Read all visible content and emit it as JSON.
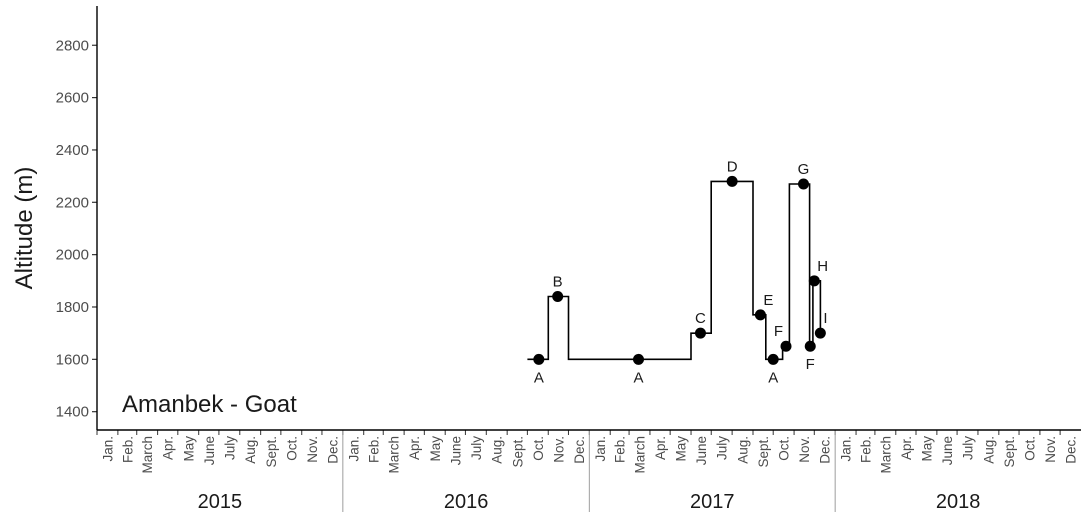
{
  "chart_data": {
    "type": "line",
    "ylabel": "Altitude (m)",
    "annotation": "Amanbek - Goat",
    "ylim": [
      1330,
      2950
    ],
    "yticks": [
      1400,
      1600,
      1800,
      2000,
      2200,
      2400,
      2600,
      2800
    ],
    "x_range": [
      "2015-01-01",
      "2019-01-01"
    ],
    "months": [
      "Jan.",
      "Feb.",
      "March",
      "Apr.",
      "May",
      "June",
      "July",
      "Aug.",
      "Sept.",
      "Oct.",
      "Nov.",
      "Dec."
    ],
    "years": [
      "2015",
      "2016",
      "2017",
      "2018"
    ],
    "step_line": [
      {
        "date": "2016-10-01",
        "y": 1600
      },
      {
        "date": "2016-11-01",
        "y": 1840
      },
      {
        "date": "2016-12-01",
        "y": 1600
      },
      {
        "date": "2017-06-01",
        "y": 1700
      },
      {
        "date": "2017-07-01",
        "y": 2280
      },
      {
        "date": "2017-09-01",
        "y": 1770
      },
      {
        "date": "2017-09-20",
        "y": 1600
      },
      {
        "date": "2017-10-15",
        "y": 1650
      },
      {
        "date": "2017-10-25",
        "y": 2270
      },
      {
        "date": "2017-11-24",
        "y": 1650
      },
      {
        "date": "2017-11-29",
        "y": 1900
      },
      {
        "date": "2017-12-10",
        "y": 1700
      }
    ],
    "points": [
      {
        "label": "A",
        "date": "2016-10-18",
        "y": 1600,
        "label_pos": "below"
      },
      {
        "label": "B",
        "date": "2016-11-15",
        "y": 1840,
        "label_pos": "above"
      },
      {
        "label": "A",
        "date": "2017-03-15",
        "y": 1600,
        "label_pos": "below"
      },
      {
        "label": "C",
        "date": "2017-06-15",
        "y": 1700,
        "label_pos": "above"
      },
      {
        "label": "D",
        "date": "2017-08-01",
        "y": 2280,
        "label_pos": "above"
      },
      {
        "label": "E",
        "date": "2017-09-12",
        "y": 1770,
        "label_pos": "above-right"
      },
      {
        "label": "A",
        "date": "2017-10-01",
        "y": 1600,
        "label_pos": "below"
      },
      {
        "label": "F",
        "date": "2017-10-20",
        "y": 1650,
        "label_pos": "above-left"
      },
      {
        "label": "G",
        "date": "2017-11-15",
        "y": 2270,
        "label_pos": "above"
      },
      {
        "label": "F",
        "date": "2017-11-25",
        "y": 1650,
        "label_pos": "below"
      },
      {
        "label": "H",
        "date": "2017-12-01",
        "y": 1900,
        "label_pos": "above-right"
      },
      {
        "label": "I",
        "date": "2017-12-10",
        "y": 1700,
        "label_pos": "above-right"
      }
    ],
    "grid": false,
    "colors": {
      "line": "#000000",
      "point": "#000000",
      "axis": "#000000",
      "separator": "#9e9e9e"
    }
  }
}
